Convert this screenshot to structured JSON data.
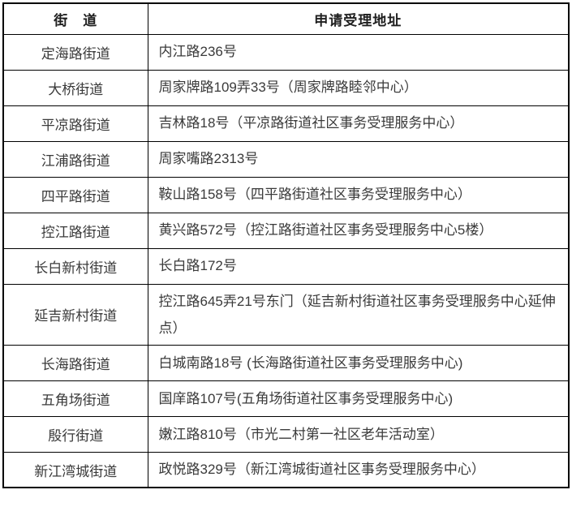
{
  "table": {
    "headers": {
      "street": "街　道",
      "address": "申请受理地址"
    },
    "rows": [
      {
        "street": "定海路街道",
        "address": "内江路236号"
      },
      {
        "street": "大桥街道",
        "address": "周家牌路109弄33号（周家牌路睦邻中心）"
      },
      {
        "street": "平凉路街道",
        "address": "吉林路18号（平凉路街道社区事务受理服务中心）"
      },
      {
        "street": "江浦路街道",
        "address": "周家嘴路2313号"
      },
      {
        "street": "四平路街道",
        "address": "鞍山路158号（四平路街道社区事务受理服务中心）"
      },
      {
        "street": "控江路街道",
        "address": "黄兴路572号（控江路街道社区事务受理服务中心5楼）"
      },
      {
        "street": "长白新村街道",
        "address": "长白路172号"
      },
      {
        "street": "延吉新村街道",
        "address": "控江路645弄21号东门（延吉新村街道社区事务受理服务中心延伸点）"
      },
      {
        "street": "长海路街道",
        "address": "白城南路18号 (长海路街道社区事务受理服务中心)"
      },
      {
        "street": "五角场街道",
        "address": "国庠路107号(五角场街道社区事务受理服务中心)"
      },
      {
        "street": "殷行街道",
        "address": "嫩江路810号（市光二村第一社区老年活动室）"
      },
      {
        "street": "新江湾城街道",
        "address": "政悦路329号（新江湾城街道社区事务受理服务中心）"
      }
    ],
    "colors": {
      "border": "#000000",
      "header_text": "#1f1f1f",
      "body_text": "#3a3a3a",
      "background": "#ffffff"
    }
  }
}
